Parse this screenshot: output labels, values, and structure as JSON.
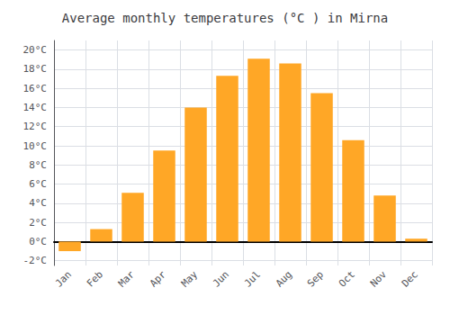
{
  "chart_data": {
    "type": "bar",
    "title": "Average monthly temperatures (°C ) in Mirna",
    "categories": [
      "Jan",
      "Feb",
      "Mar",
      "Apr",
      "May",
      "Jun",
      "Jul",
      "Aug",
      "Sep",
      "Oct",
      "Nov",
      "Dec"
    ],
    "values": [
      -1.0,
      1.3,
      5.1,
      9.5,
      14.0,
      17.3,
      19.1,
      18.6,
      15.5,
      10.6,
      4.8,
      0.3
    ],
    "color": "#FFA726",
    "ylim": [
      -2.5,
      21
    ],
    "yticks": [
      {
        "value": -2,
        "label": "-2°C"
      },
      {
        "value": 0,
        "label": "0°C"
      },
      {
        "value": 2,
        "label": "2°C"
      },
      {
        "value": 4,
        "label": "4°C"
      },
      {
        "value": 6,
        "label": "6°C"
      },
      {
        "value": 8,
        "label": "8°C"
      },
      {
        "value": 10,
        "label": "10°C"
      },
      {
        "value": 12,
        "label": "12°C"
      },
      {
        "value": 14,
        "label": "14°C"
      },
      {
        "value": 16,
        "label": "16°C"
      },
      {
        "value": 18,
        "label": "18°C"
      },
      {
        "value": 20,
        "label": "20°C"
      }
    ],
    "grid": true
  }
}
